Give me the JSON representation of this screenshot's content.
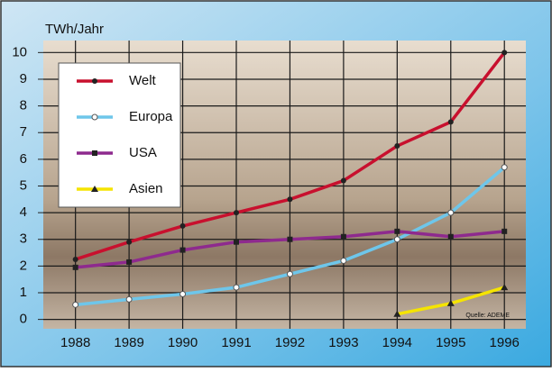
{
  "chart_data": {
    "type": "line",
    "y_label": "TWh/Jahr",
    "source": "Quelle: ADEME",
    "x": [
      1988,
      1989,
      1990,
      1991,
      1992,
      1993,
      1994,
      1995,
      1996
    ],
    "xlim": [
      1987.4,
      1996.4
    ],
    "xticks": [
      1988,
      1989,
      1990,
      1991,
      1992,
      1993,
      1994,
      1995,
      1996
    ],
    "ylim": [
      -0.35,
      10.45
    ],
    "yticks": [
      0,
      1,
      2,
      3,
      4,
      5,
      6,
      7,
      8,
      9,
      10
    ],
    "grid": true,
    "legend": "upper left",
    "series": [
      {
        "name": "Welt",
        "color": "#c8102e",
        "marker": "circle",
        "values": [
          2.25,
          2.9,
          3.5,
          4.0,
          4.5,
          5.2,
          6.5,
          7.4,
          10.0
        ]
      },
      {
        "name": "Europa",
        "color": "#6ec6ea",
        "marker": "open-circle",
        "values": [
          0.55,
          0.75,
          0.95,
          1.2,
          1.7,
          2.2,
          3.0,
          4.0,
          5.7
        ]
      },
      {
        "name": "USA",
        "color": "#8e2a8e",
        "marker": "square",
        "values": [
          1.95,
          2.15,
          2.6,
          2.9,
          3.0,
          3.1,
          3.3,
          3.1,
          3.3
        ]
      },
      {
        "name": "Asien",
        "color": "#f5e400",
        "marker": "triangle",
        "values": [
          null,
          null,
          null,
          null,
          null,
          null,
          0.2,
          0.6,
          1.2
        ]
      }
    ]
  }
}
